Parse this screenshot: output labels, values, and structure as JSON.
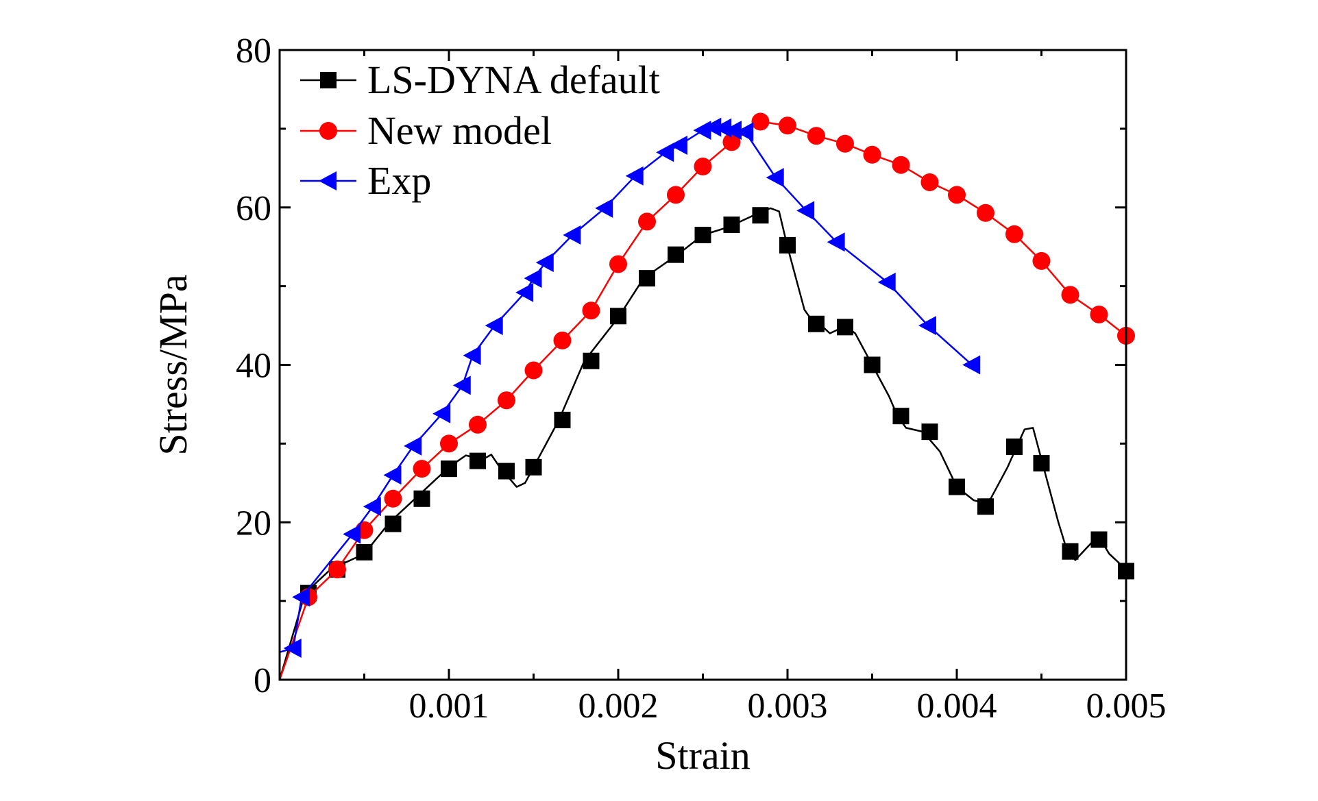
{
  "chart_data": {
    "type": "line",
    "xlabel": "Strain",
    "ylabel": "Stress/MPa",
    "xlim": [
      0,
      0.005
    ],
    "ylim": [
      0,
      80
    ],
    "x_ticks": [
      0.001,
      0.002,
      0.003,
      0.004,
      0.005
    ],
    "x_tick_labels": [
      "0.001",
      "0.002",
      "0.003",
      "0.004",
      "0.005"
    ],
    "y_ticks": [
      0,
      20,
      40,
      60,
      80
    ],
    "y_tick_labels": [
      "0",
      "20",
      "40",
      "60",
      "80"
    ],
    "grid": false,
    "legend_position": "top-left",
    "series": [
      {
        "name": "LS-DYNA default",
        "color": "#000000",
        "marker": "square",
        "line_points": [
          [
            0,
            0
          ],
          [
            0.00015,
            11
          ],
          [
            0.0003,
            14
          ],
          [
            0.0005,
            16
          ],
          [
            0.00065,
            20
          ],
          [
            0.0008,
            23
          ],
          [
            0.001,
            27
          ],
          [
            0.0011,
            28.5
          ],
          [
            0.0012,
            28
          ],
          [
            0.00125,
            28.6
          ],
          [
            0.0013,
            27
          ],
          [
            0.0014,
            24.5
          ],
          [
            0.00145,
            25
          ],
          [
            0.0015,
            27
          ],
          [
            0.00165,
            33
          ],
          [
            0.0018,
            40.5
          ],
          [
            0.002,
            46
          ],
          [
            0.00215,
            51
          ],
          [
            0.00235,
            54
          ],
          [
            0.0025,
            56.5
          ],
          [
            0.00265,
            57.5
          ],
          [
            0.0028,
            59
          ],
          [
            0.0029,
            59.9
          ],
          [
            0.00295,
            59.5
          ],
          [
            0.003,
            55
          ],
          [
            0.0031,
            47
          ],
          [
            0.00315,
            45.5
          ],
          [
            0.0032,
            45
          ],
          [
            0.00325,
            44
          ],
          [
            0.0033,
            44.5
          ],
          [
            0.00335,
            44.8
          ],
          [
            0.0034,
            44
          ],
          [
            0.0035,
            40
          ],
          [
            0.0036,
            36
          ],
          [
            0.00365,
            33.5
          ],
          [
            0.0037,
            32
          ],
          [
            0.0038,
            31.5
          ],
          [
            0.0039,
            29
          ],
          [
            0.004,
            24.5
          ],
          [
            0.0041,
            22.8
          ],
          [
            0.00415,
            22.5
          ],
          [
            0.0042,
            23
          ],
          [
            0.0043,
            27
          ],
          [
            0.0044,
            31.8
          ],
          [
            0.00445,
            32
          ],
          [
            0.0045,
            28
          ],
          [
            0.0046,
            20
          ],
          [
            0.00465,
            16.5
          ],
          [
            0.0047,
            15.2
          ],
          [
            0.0048,
            17.5
          ],
          [
            0.00485,
            17.8
          ],
          [
            0.0049,
            16
          ],
          [
            0.005,
            14
          ]
        ],
        "marker_points": [
          [
            0.00017,
            11
          ],
          [
            0.00034,
            14
          ],
          [
            0.0005,
            16.2
          ],
          [
            0.00067,
            19.8
          ],
          [
            0.00084,
            23
          ],
          [
            0.001,
            26.8
          ],
          [
            0.00117,
            27.8
          ],
          [
            0.00134,
            26.5
          ],
          [
            0.0015,
            27
          ],
          [
            0.00167,
            33
          ],
          [
            0.00184,
            40.5
          ],
          [
            0.002,
            46.2
          ],
          [
            0.00217,
            51
          ],
          [
            0.00234,
            54
          ],
          [
            0.0025,
            56.5
          ],
          [
            0.00267,
            57.8
          ],
          [
            0.00284,
            59
          ],
          [
            0.003,
            55.2
          ],
          [
            0.00317,
            45.2
          ],
          [
            0.00334,
            44.8
          ],
          [
            0.0035,
            40
          ],
          [
            0.00367,
            33.5
          ],
          [
            0.00384,
            31.5
          ],
          [
            0.004,
            24.5
          ],
          [
            0.00417,
            22
          ],
          [
            0.00434,
            29.6
          ],
          [
            0.0045,
            27.5
          ],
          [
            0.00467,
            16.3
          ],
          [
            0.00484,
            17.8
          ],
          [
            0.005,
            13.8
          ]
        ]
      },
      {
        "name": "New model",
        "color": "#ff0000",
        "marker": "circle",
        "line_points": [
          [
            0,
            0
          ],
          [
            0.00017,
            10.5
          ],
          [
            0.00034,
            14
          ],
          [
            0.0005,
            19
          ],
          [
            0.00067,
            23
          ],
          [
            0.00084,
            26.8
          ],
          [
            0.001,
            30
          ],
          [
            0.00117,
            32.4
          ],
          [
            0.00134,
            35.5
          ],
          [
            0.0015,
            39.3
          ],
          [
            0.00167,
            43.1
          ],
          [
            0.00184,
            46.9
          ],
          [
            0.002,
            52.8
          ],
          [
            0.00217,
            58.2
          ],
          [
            0.00234,
            61.6
          ],
          [
            0.0025,
            65.2
          ],
          [
            0.00267,
            68.3
          ],
          [
            0.00284,
            70.9
          ],
          [
            0.003,
            70.4
          ],
          [
            0.00317,
            69.1
          ],
          [
            0.00334,
            68.1
          ],
          [
            0.0035,
            66.7
          ],
          [
            0.00367,
            65.4
          ],
          [
            0.00384,
            63.2
          ],
          [
            0.004,
            61.6
          ],
          [
            0.00417,
            59.3
          ],
          [
            0.00434,
            56.6
          ],
          [
            0.0045,
            53.2
          ],
          [
            0.00467,
            48.9
          ],
          [
            0.00484,
            46.4
          ],
          [
            0.005,
            43.7
          ]
        ],
        "marker_points": [
          [
            0.00017,
            10.5
          ],
          [
            0.00034,
            14
          ],
          [
            0.0005,
            19
          ],
          [
            0.00067,
            23
          ],
          [
            0.00084,
            26.8
          ],
          [
            0.001,
            30
          ],
          [
            0.00117,
            32.4
          ],
          [
            0.00134,
            35.5
          ],
          [
            0.0015,
            39.3
          ],
          [
            0.00167,
            43.1
          ],
          [
            0.00184,
            46.9
          ],
          [
            0.002,
            52.8
          ],
          [
            0.00217,
            58.2
          ],
          [
            0.00234,
            61.6
          ],
          [
            0.0025,
            65.2
          ],
          [
            0.00267,
            68.3
          ],
          [
            0.00284,
            70.9
          ],
          [
            0.003,
            70.4
          ],
          [
            0.00317,
            69.1
          ],
          [
            0.00334,
            68.1
          ],
          [
            0.0035,
            66.7
          ],
          [
            0.00367,
            65.4
          ],
          [
            0.00384,
            63.2
          ],
          [
            0.004,
            61.6
          ],
          [
            0.00417,
            59.3
          ],
          [
            0.00434,
            56.6
          ],
          [
            0.0045,
            53.2
          ],
          [
            0.00467,
            48.9
          ],
          [
            0.00484,
            46.4
          ],
          [
            0.005,
            43.7
          ]
        ]
      },
      {
        "name": "Exp",
        "color": "#0000ff",
        "marker": "triangle-left",
        "line_points": [
          [
            0,
            3.5
          ],
          [
            8e-05,
            4
          ],
          [
            0.00013,
            10.5
          ],
          [
            0.00043,
            18.5
          ],
          [
            0.00055,
            22
          ],
          [
            0.00067,
            26
          ],
          [
            0.00079,
            29.7
          ],
          [
            0.00096,
            33.8
          ],
          [
            0.00108,
            37.4
          ],
          [
            0.00114,
            41.2
          ],
          [
            0.00127,
            45
          ],
          [
            0.00145,
            49.2
          ],
          [
            0.0015,
            51
          ],
          [
            0.00157,
            53
          ],
          [
            0.00173,
            56.5
          ],
          [
            0.00192,
            59.9
          ],
          [
            0.0021,
            64
          ],
          [
            0.00228,
            67
          ],
          [
            0.00236,
            67.9
          ],
          [
            0.0025,
            69.8
          ],
          [
            0.00256,
            70.2
          ],
          [
            0.00262,
            70.1
          ],
          [
            0.00268,
            69.8
          ],
          [
            0.00275,
            69.6
          ],
          [
            0.00293,
            63.8
          ],
          [
            0.00311,
            59.6
          ],
          [
            0.00329,
            55.6
          ],
          [
            0.00359,
            50.5
          ],
          [
            0.00383,
            45
          ],
          [
            0.00409,
            40
          ]
        ],
        "marker_points": [
          [
            8e-05,
            4
          ],
          [
            0.00013,
            10.5
          ],
          [
            0.00043,
            18.5
          ],
          [
            0.00055,
            22
          ],
          [
            0.00067,
            26
          ],
          [
            0.00079,
            29.7
          ],
          [
            0.00096,
            33.8
          ],
          [
            0.00108,
            37.4
          ],
          [
            0.00114,
            41.2
          ],
          [
            0.00127,
            45
          ],
          [
            0.00145,
            49.2
          ],
          [
            0.0015,
            51
          ],
          [
            0.00157,
            53
          ],
          [
            0.00173,
            56.5
          ],
          [
            0.00192,
            59.9
          ],
          [
            0.0021,
            64
          ],
          [
            0.00228,
            67
          ],
          [
            0.00236,
            67.9
          ],
          [
            0.0025,
            69.8
          ],
          [
            0.00256,
            70.2
          ],
          [
            0.00262,
            70.1
          ],
          [
            0.00268,
            69.8
          ],
          [
            0.00275,
            69.6
          ],
          [
            0.00293,
            63.8
          ],
          [
            0.00311,
            59.6
          ],
          [
            0.00329,
            55.6
          ],
          [
            0.00359,
            50.5
          ],
          [
            0.00383,
            45
          ],
          [
            0.00409,
            40
          ]
        ]
      }
    ]
  }
}
